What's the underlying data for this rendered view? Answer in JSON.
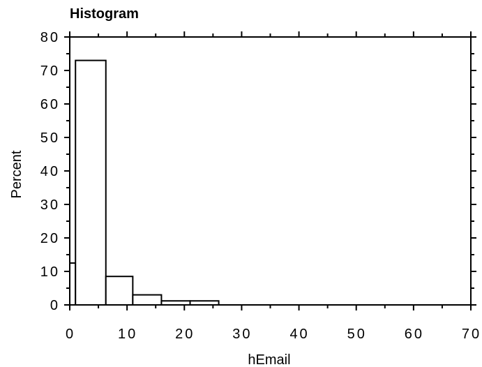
{
  "chart_data": {
    "type": "bar",
    "title": "Histogram",
    "xlabel": "hEmail",
    "ylabel": "Percent",
    "xlim": [
      0,
      70
    ],
    "ylim": [
      0,
      80
    ],
    "x_ticks": [
      "0",
      "10",
      "20",
      "30",
      "40",
      "50",
      "60",
      "70"
    ],
    "y_ticks": [
      "0",
      "10",
      "20",
      "30",
      "40",
      "50",
      "60",
      "70",
      "80"
    ],
    "bins": [
      {
        "start": 0,
        "end": 1,
        "value": 12.5
      },
      {
        "start": 1,
        "end": 6.3,
        "value": 73
      },
      {
        "start": 6.3,
        "end": 11,
        "value": 8.5
      },
      {
        "start": 11,
        "end": 16,
        "value": 3
      },
      {
        "start": 16,
        "end": 21,
        "value": 1.2
      },
      {
        "start": 21,
        "end": 26,
        "value": 1.2
      }
    ],
    "grid": false,
    "colors": {
      "bar_fill": "#ffffff",
      "bar_stroke": "#000000",
      "frame": "#000000"
    }
  }
}
